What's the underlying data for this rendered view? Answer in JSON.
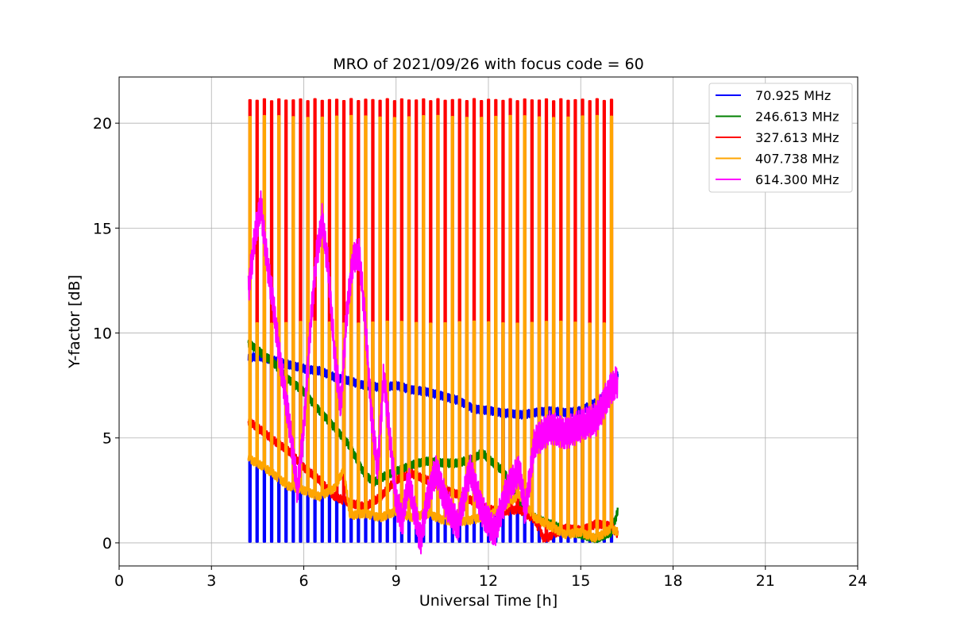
{
  "chart_data": {
    "type": "line",
    "title": "MRO of 2021/09/26 with focus code = 60",
    "xlabel": "Universal Time [h]",
    "ylabel": "Y-factor [dB]",
    "xlim": [
      0,
      24
    ],
    "ylim": [
      -1.1,
      22.2
    ],
    "xticks": [
      0,
      3,
      6,
      9,
      12,
      15,
      18,
      21,
      24
    ],
    "yticks": [
      0,
      5,
      10,
      15,
      20
    ],
    "grid": true,
    "legend_position": "top-right",
    "pulse_train": {
      "start": 4.25,
      "end": 16.0,
      "count": 51,
      "note": ""
    },
    "series": [
      {
        "name": "70.925 MHz",
        "color": "#0000ff",
        "pulse_low": 0.05,
        "x": [
          4.2,
          4.5,
          5.0,
          5.5,
          6.0,
          6.5,
          7.0,
          7.5,
          8.0,
          8.5,
          9.0,
          9.5,
          10.0,
          10.5,
          11.0,
          11.5,
          12.0,
          12.5,
          13.0,
          13.5,
          14.0,
          14.5,
          15.0,
          15.5,
          16.0,
          16.2
        ],
        "y": [
          8.8,
          8.9,
          8.7,
          8.5,
          8.3,
          8.2,
          7.9,
          7.7,
          7.5,
          7.4,
          7.5,
          7.3,
          7.2,
          7.0,
          6.8,
          6.4,
          6.3,
          6.2,
          6.1,
          6.2,
          6.3,
          6.2,
          6.3,
          6.7,
          7.3,
          8.1
        ]
      },
      {
        "name": "246.613 MHz",
        "color": "#008000",
        "x": [
          4.2,
          4.5,
          5.0,
          5.5,
          6.0,
          6.5,
          7.0,
          7.5,
          8.0,
          8.3,
          8.5,
          9.0,
          9.5,
          10.0,
          10.5,
          11.0,
          11.5,
          11.8,
          12.0,
          12.5,
          13.0,
          13.5,
          14.0,
          14.5,
          15.0,
          15.5,
          16.0,
          16.2
        ],
        "y": [
          9.5,
          9.2,
          8.6,
          7.8,
          7.2,
          6.3,
          5.5,
          4.6,
          3.2,
          2.9,
          3.1,
          3.4,
          3.7,
          3.9,
          3.8,
          3.8,
          4.0,
          4.3,
          4.0,
          3.4,
          2.0,
          1.2,
          0.9,
          0.6,
          0.4,
          0.2,
          0.5,
          1.5
        ]
      },
      {
        "name": "327.613 MHz",
        "color": "#ff0000",
        "pulse_high": 21.1,
        "x": [
          4.2,
          4.5,
          5.0,
          5.5,
          6.0,
          6.5,
          7.0,
          7.5,
          8.0,
          8.5,
          9.0,
          9.5,
          10.0,
          10.5,
          11.0,
          11.5,
          12.0,
          12.5,
          13.0,
          13.5,
          13.8,
          14.0,
          14.5,
          15.0,
          15.5,
          16.0,
          16.2
        ],
        "y": [
          5.8,
          5.5,
          4.9,
          4.4,
          3.6,
          3.0,
          2.2,
          1.9,
          1.7,
          2.2,
          3.0,
          3.3,
          3.0,
          2.6,
          2.3,
          2.0,
          1.6,
          1.5,
          1.6,
          1.1,
          0.2,
          0.3,
          0.7,
          0.6,
          0.9,
          0.8,
          0.4
        ]
      },
      {
        "name": "407.738 MHz",
        "color": "#ffa500",
        "pulse_high": 20.3,
        "pulse_mid": 10.5,
        "x": [
          4.2,
          4.5,
          5.0,
          5.5,
          6.0,
          6.5,
          7.0,
          7.3,
          7.5,
          8.0,
          8.5,
          9.0,
          9.5,
          10.0,
          10.5,
          11.0,
          11.5,
          12.0,
          12.5,
          13.0,
          13.5,
          14.0,
          14.5,
          15.0,
          15.5,
          16.0,
          16.2
        ],
        "y": [
          4.0,
          3.8,
          3.3,
          2.7,
          2.5,
          2.2,
          2.6,
          3.5,
          1.3,
          1.4,
          1.2,
          1.5,
          1.2,
          1.4,
          1.1,
          1.0,
          1.1,
          1.3,
          1.7,
          2.3,
          1.2,
          0.8,
          0.4,
          0.5,
          0.2,
          0.7,
          0.5
        ]
      },
      {
        "name": "614.300 MHz",
        "color": "#ff00ff",
        "x": [
          4.2,
          4.4,
          4.6,
          4.8,
          5.0,
          5.2,
          5.5,
          5.8,
          6.0,
          6.2,
          6.4,
          6.6,
          6.8,
          7.0,
          7.2,
          7.4,
          7.6,
          7.8,
          8.0,
          8.2,
          8.4,
          8.6,
          8.8,
          9.0,
          9.2,
          9.4,
          9.6,
          9.8,
          10.0,
          10.3,
          10.6,
          11.0,
          11.4,
          11.8,
          12.2,
          12.6,
          13.0,
          13.2,
          13.5,
          14.0,
          14.5,
          15.0,
          15.5,
          16.0,
          16.2
        ],
        "y": [
          12.0,
          14.5,
          16.1,
          13.5,
          11.5,
          9.0,
          6.0,
          2.5,
          5.5,
          10.0,
          13.5,
          15.4,
          13.0,
          9.0,
          6.5,
          11.0,
          13.5,
          13.8,
          10.5,
          6.0,
          3.5,
          8.0,
          5.0,
          2.0,
          1.0,
          3.0,
          1.5,
          0.1,
          2.0,
          3.5,
          2.0,
          0.8,
          3.5,
          1.5,
          0.5,
          2.5,
          3.5,
          1.5,
          4.8,
          5.5,
          5.2,
          5.6,
          5.9,
          7.4,
          7.7
        ]
      }
    ]
  }
}
